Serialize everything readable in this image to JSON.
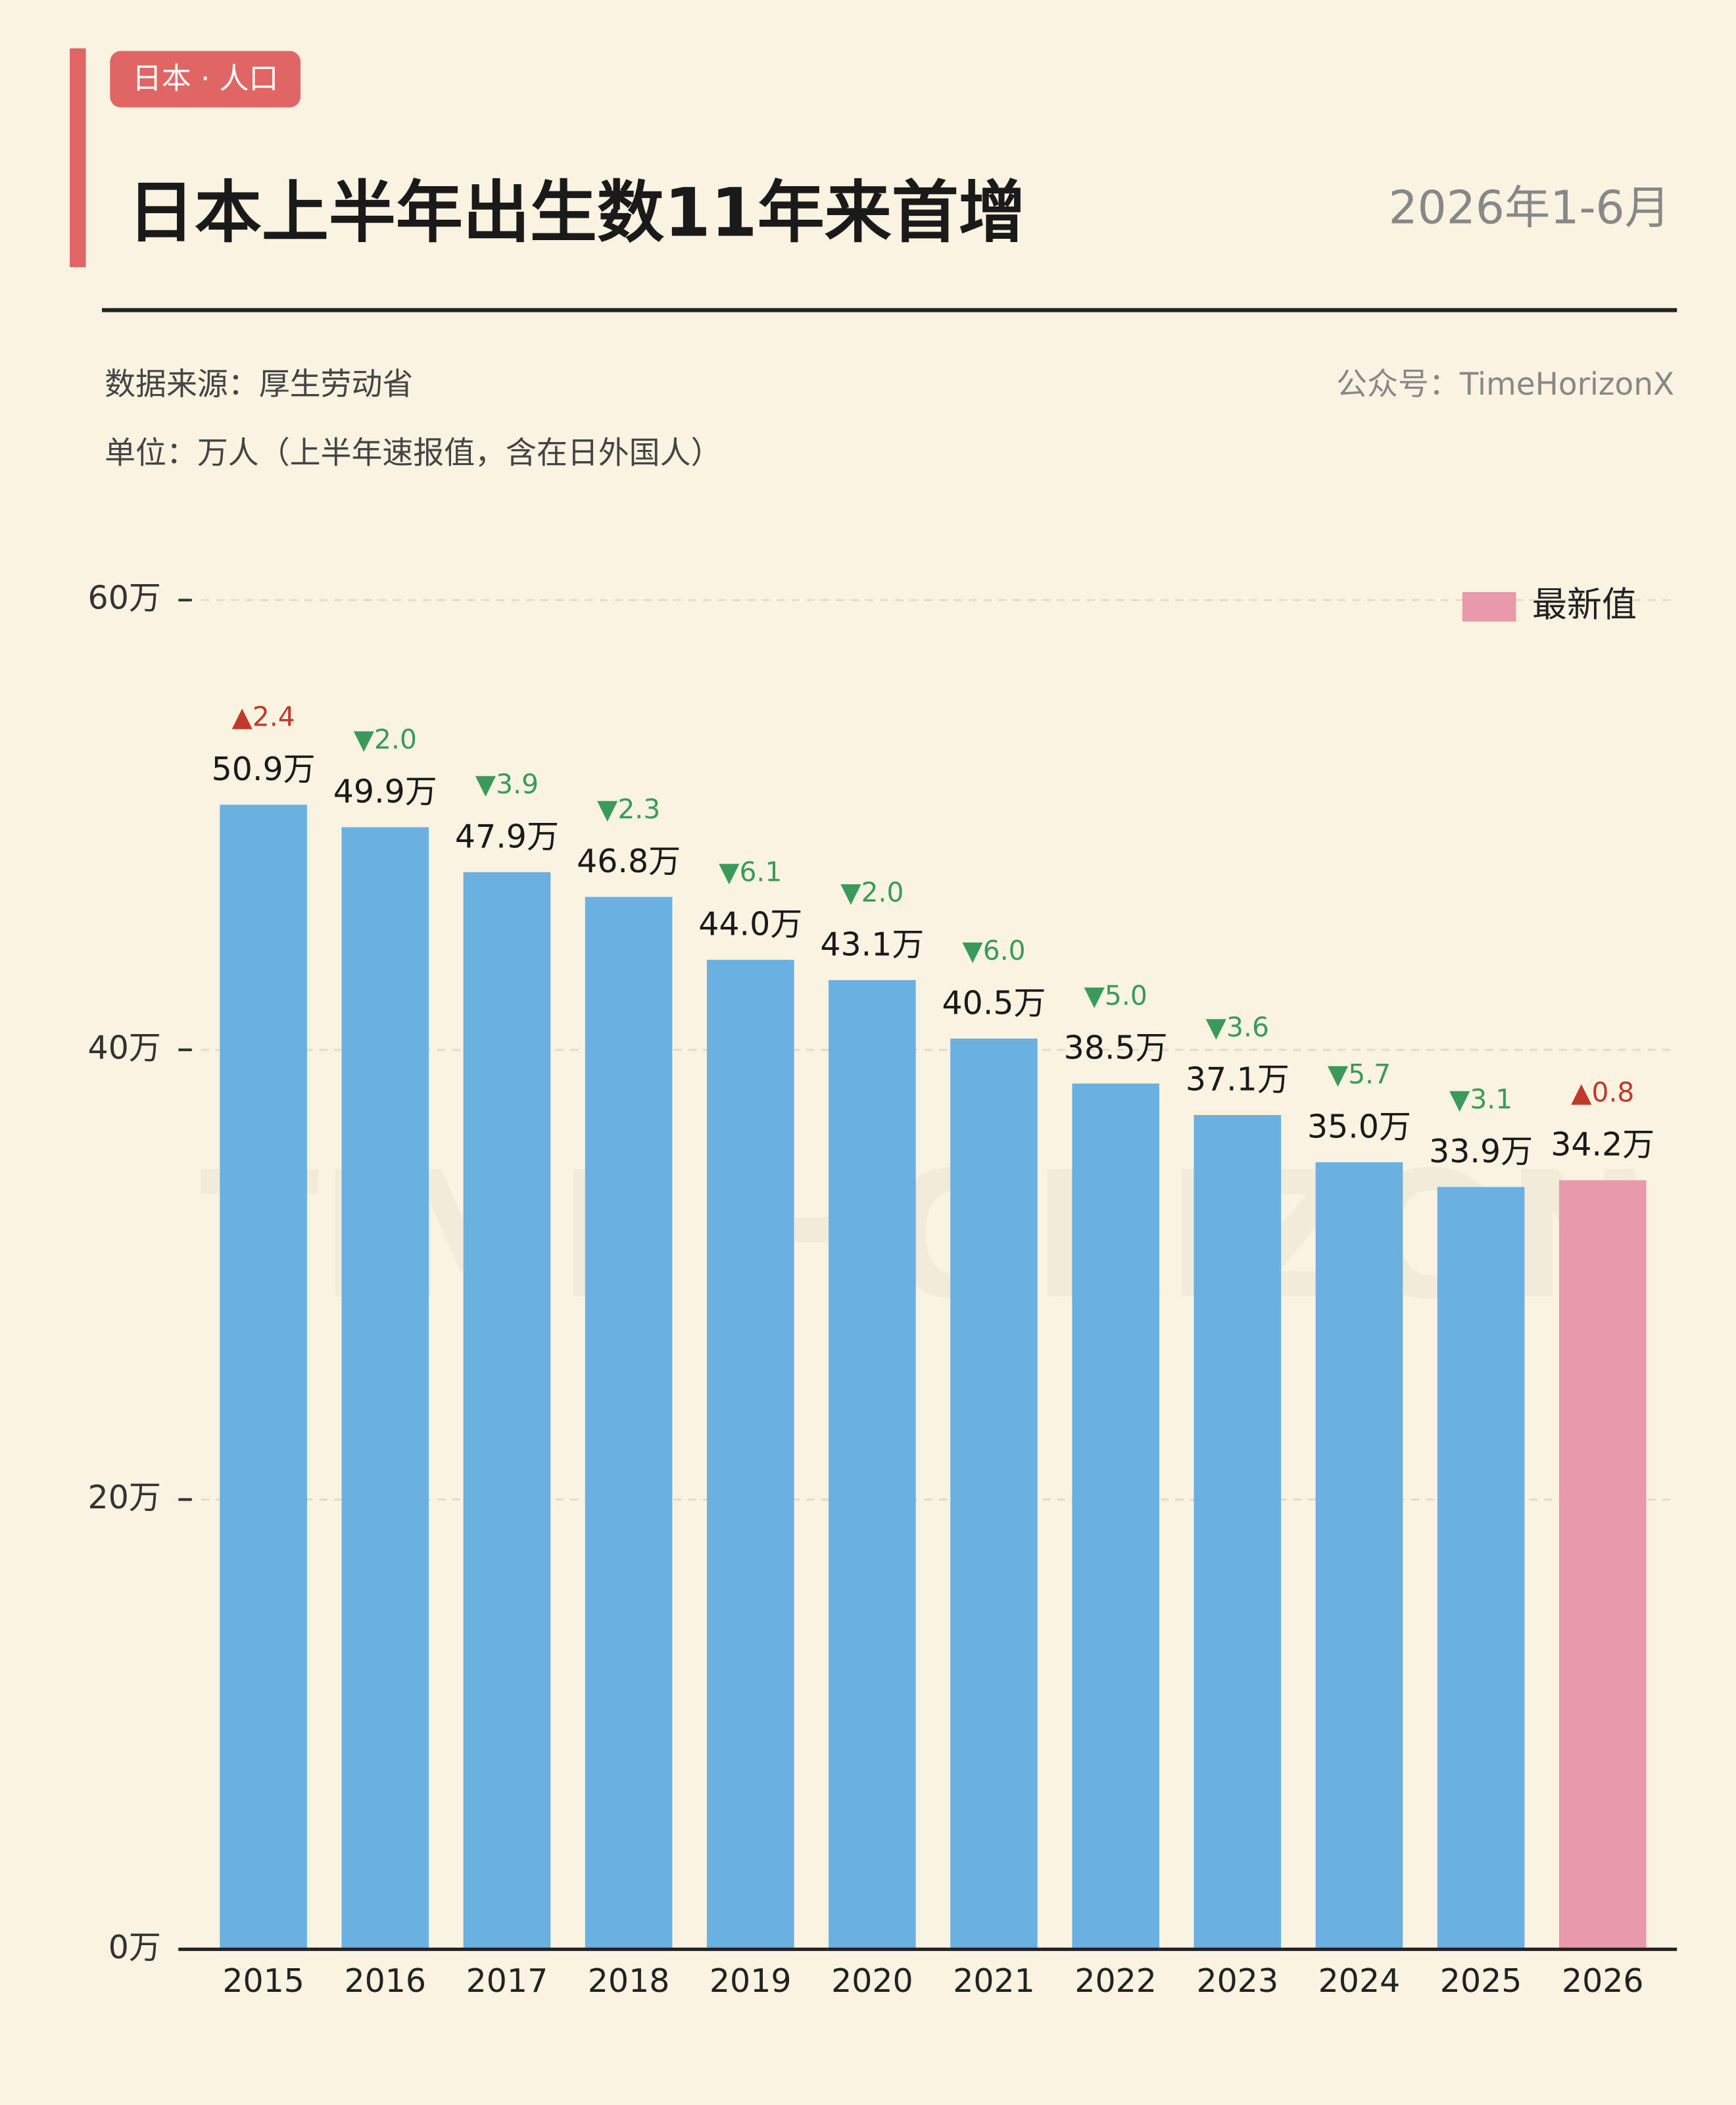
{
  "chart_data": {
    "type": "bar",
    "tag": "日本 · 人口",
    "title": "日本上半年出生数11年来首增",
    "subtitle": "2026年1-6月",
    "source": "数据来源：厚生劳动省",
    "account": "公众号：TimeHorizonX",
    "unit": "单位：万人（上半年速报值，含在日外国人）",
    "watermark": "TIME HORIZON",
    "legend": {
      "label": "最新值",
      "color": "#e89aab",
      "position": "upper right"
    },
    "categories": [
      "2015",
      "2016",
      "2017",
      "2018",
      "2019",
      "2020",
      "2021",
      "2022",
      "2023",
      "2024",
      "2025",
      "2026"
    ],
    "values": [
      50.9,
      49.9,
      47.9,
      46.8,
      44.0,
      43.1,
      40.5,
      38.5,
      37.1,
      35.0,
      33.9,
      34.2
    ],
    "value_labels": [
      "50.9万",
      "49.9万",
      "47.9万",
      "46.8万",
      "44.0万",
      "43.1万",
      "40.5万",
      "38.5万",
      "37.1万",
      "35.0万",
      "33.9万",
      "34.2万"
    ],
    "changes": [
      2.4,
      -2.0,
      -3.9,
      -2.3,
      -6.1,
      -2.0,
      -6.0,
      -5.0,
      -3.6,
      -5.7,
      -3.1,
      0.8
    ],
    "change_labels": [
      "▲2.4",
      "▼2.0",
      "▼3.9",
      "▼2.3",
      "▼6.1",
      "▼2.0",
      "▼6.0",
      "▼5.0",
      "▼3.6",
      "▼5.7",
      "▼3.1",
      "▲0.8"
    ],
    "colors": [
      "#6ab0e0",
      "#6ab0e0",
      "#6ab0e0",
      "#6ab0e0",
      "#6ab0e0",
      "#6ab0e0",
      "#6ab0e0",
      "#6ab0e0",
      "#6ab0e0",
      "#6ab0e0",
      "#6ab0e0",
      "#e89aab"
    ],
    "ylim": [
      0,
      60
    ],
    "yticks": [
      {
        "value": 0,
        "label": "0万"
      },
      {
        "value": 20,
        "label": "20万"
      },
      {
        "value": 40,
        "label": "40万"
      },
      {
        "value": 60,
        "label": "60万"
      }
    ],
    "grid": true
  }
}
